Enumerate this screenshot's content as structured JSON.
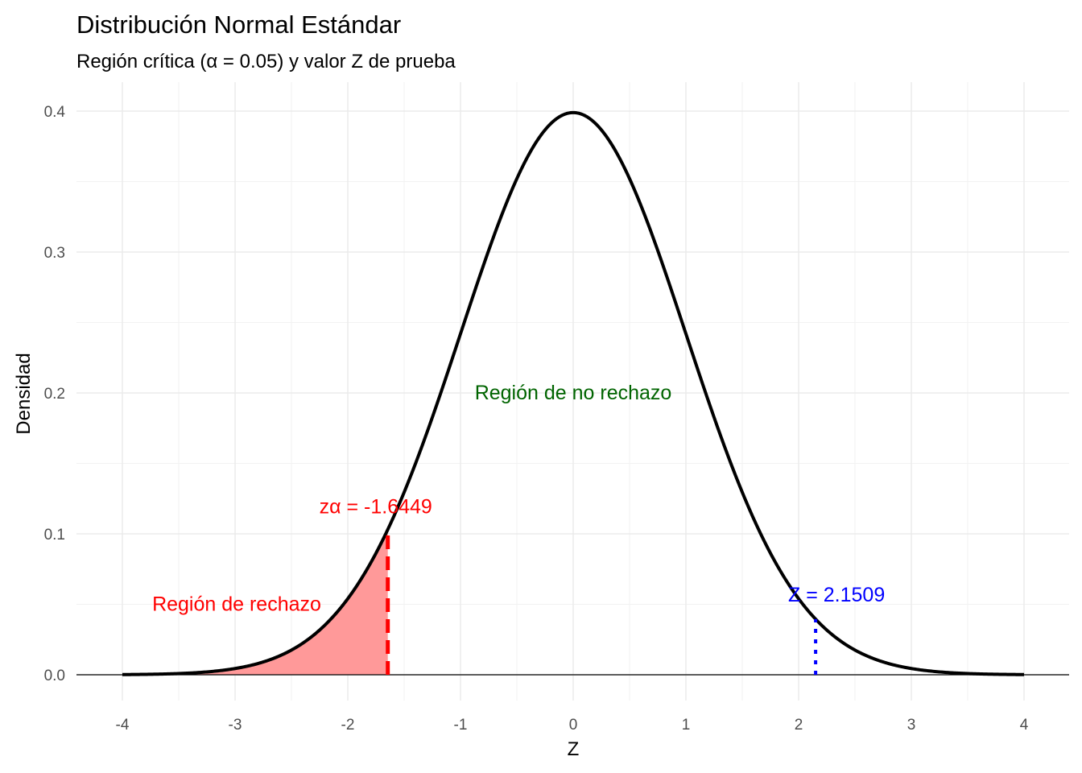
{
  "chart_data": {
    "type": "area",
    "title": "Distribución Normal Estándar",
    "subtitle": "Región crítica (α = 0.05) y valor Z de prueba",
    "xlabel": "Z",
    "ylabel": "Densidad",
    "xlim": [
      -4,
      4
    ],
    "ylim": [
      0,
      0.4
    ],
    "x_ticks": [
      -4,
      -3,
      -2,
      -1,
      0,
      1,
      2,
      3,
      4
    ],
    "y_ticks": [
      0.0,
      0.1,
      0.2,
      0.3,
      0.4
    ],
    "x_tick_labels": [
      "-4",
      "-3",
      "-2",
      "-1",
      "0",
      "1",
      "2",
      "3",
      "4"
    ],
    "y_tick_labels": [
      "0.0",
      "0.1",
      "0.2",
      "0.3",
      "0.4"
    ],
    "grid": true,
    "series": [
      {
        "x": [
          -4,
          -3.5,
          -3,
          -2.5,
          -2,
          -1.5,
          -1,
          -0.5,
          0,
          0.5,
          1,
          1.5,
          2,
          2.5,
          3,
          3.5,
          4
        ],
        "values": [
          0.0001,
          0.0009,
          0.0044,
          0.0175,
          0.054,
          0.1295,
          0.242,
          0.3521,
          0.3989,
          0.3521,
          0.242,
          0.1295,
          0.054,
          0.0175,
          0.0044,
          0.0009,
          0.0001
        ],
        "color": "#000000"
      }
    ],
    "critical_value": -1.6449,
    "test_value": 2.1509,
    "rejection_fill": "#ff9999",
    "critical_color": "#ff0000",
    "test_color": "#0000ff",
    "no_reject_color": "#006400",
    "annotations": {
      "critical": "zα = -1.6449",
      "test": "Z = 2.1509",
      "reject_region": "Región de rechazo",
      "no_reject_region": "Región de no rechazo"
    }
  }
}
